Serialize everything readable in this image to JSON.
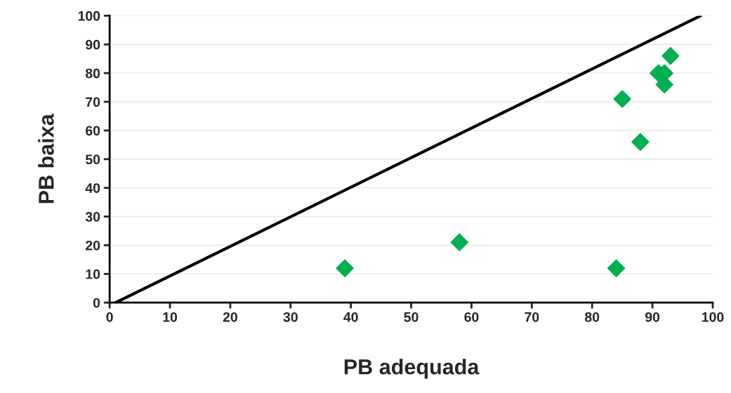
{
  "chart_data": {
    "type": "scatter",
    "xlabel": "PB adequada",
    "ylabel": "PB baixa",
    "xlim": [
      0,
      100
    ],
    "ylim": [
      0,
      100
    ],
    "xticks": [
      0,
      10,
      20,
      30,
      40,
      50,
      60,
      70,
      80,
      90,
      100
    ],
    "yticks": [
      0,
      10,
      20,
      30,
      40,
      50,
      60,
      70,
      80,
      90,
      100
    ],
    "grid": "y",
    "legend": false,
    "series": [
      {
        "color": "#00b050",
        "marker": "diamond",
        "x": [
          39,
          58,
          84,
          85,
          88,
          91,
          92,
          92,
          93
        ],
        "values": [
          12,
          21,
          12,
          71,
          56,
          80,
          80,
          76,
          86
        ]
      },
      {
        "type": "line",
        "color": "#000000",
        "marker": "none",
        "line_style": "solid",
        "x": [
          1,
          98
        ],
        "values": [
          0,
          100
        ]
      }
    ]
  }
}
